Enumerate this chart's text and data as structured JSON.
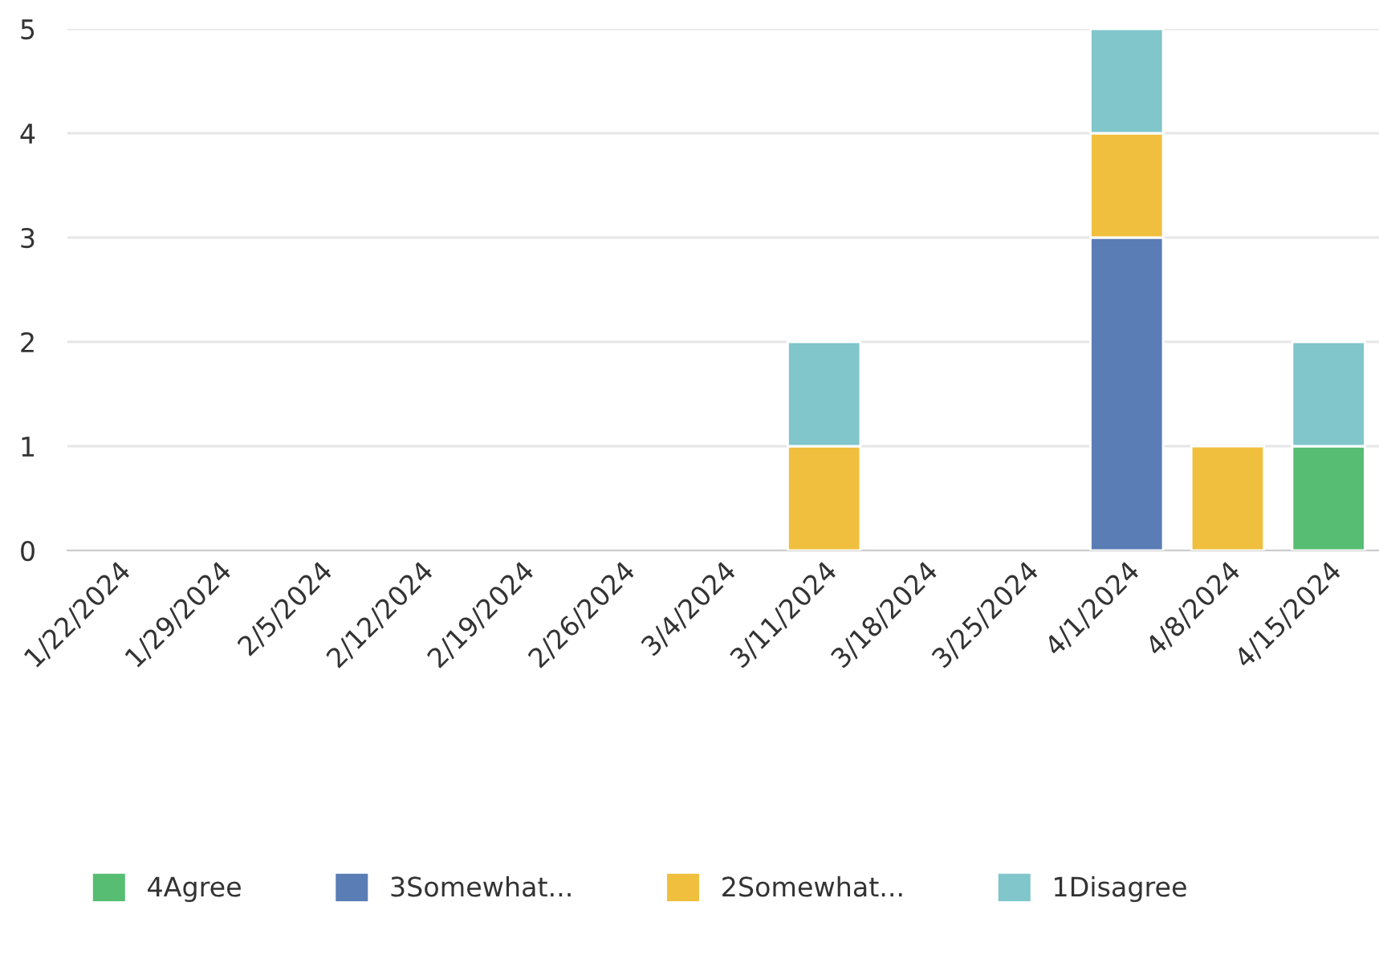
{
  "chart_data": {
    "type": "bar",
    "stacked": true,
    "categories": [
      "1/22/2024",
      "1/29/2024",
      "2/5/2024",
      "2/12/2024",
      "2/19/2024",
      "2/26/2024",
      "3/4/2024",
      "3/11/2024",
      "3/18/2024",
      "3/25/2024",
      "4/1/2024",
      "4/8/2024",
      "4/15/2024"
    ],
    "series": [
      {
        "name": "4Agree",
        "color": "#57bd72",
        "values": [
          null,
          null,
          null,
          null,
          null,
          null,
          null,
          null,
          null,
          null,
          null,
          null,
          1
        ]
      },
      {
        "name": "3Somewhat...",
        "color": "#5b7db5",
        "values": [
          null,
          null,
          null,
          null,
          null,
          null,
          null,
          null,
          null,
          null,
          3,
          null,
          null
        ]
      },
      {
        "name": "2Somewhat...",
        "color": "#f0bf3e",
        "values": [
          null,
          null,
          null,
          null,
          null,
          null,
          null,
          1,
          null,
          null,
          1,
          1,
          null
        ]
      },
      {
        "name": "1Disagree",
        "color": "#80c6cb",
        "values": [
          null,
          null,
          null,
          null,
          null,
          null,
          null,
          1,
          null,
          null,
          1,
          null,
          1
        ]
      }
    ],
    "ylim": [
      0,
      5
    ],
    "yticks": [
      0,
      1,
      2,
      3,
      4,
      5
    ],
    "grid": "y",
    "legend": "bottom"
  }
}
